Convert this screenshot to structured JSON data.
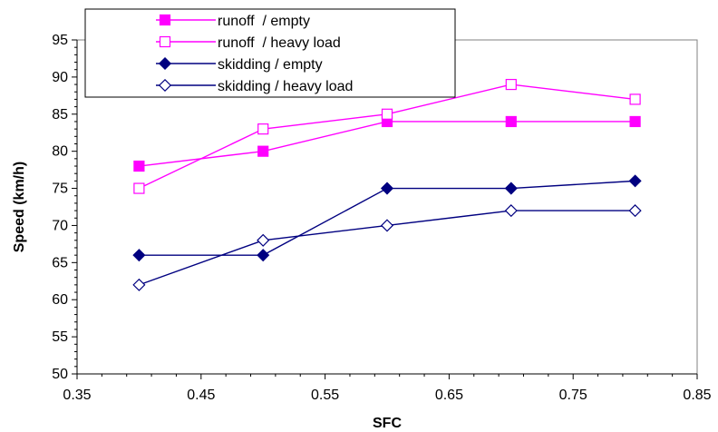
{
  "chart_data": {
    "type": "line",
    "title": "",
    "xlabel": "SFC",
    "ylabel": "Speed (km/h)",
    "xlim": [
      0.35,
      0.85
    ],
    "ylim": [
      50,
      95
    ],
    "x_ticks": [
      0.35,
      0.45,
      0.55,
      0.65,
      0.75,
      0.85
    ],
    "x_tick_labels": [
      "0.35",
      "0.45",
      "0.55",
      "0.65",
      "0.75",
      "0.85"
    ],
    "y_ticks": [
      50,
      55,
      60,
      65,
      70,
      75,
      80,
      85,
      90,
      95
    ],
    "y_tick_labels": [
      "50",
      "55",
      "60",
      "65",
      "70",
      "75",
      "80",
      "85",
      "90",
      "95"
    ],
    "grid": false,
    "legend_position": "top-left",
    "x": [
      0.4,
      0.5,
      0.6,
      0.7,
      0.8
    ],
    "series": [
      {
        "name": "runoff  / empty",
        "values": [
          78,
          80,
          84,
          84,
          84
        ],
        "color": "#ff00ff",
        "marker": "square-filled"
      },
      {
        "name": "runoff  / heavy load",
        "values": [
          75,
          83,
          85,
          89,
          87
        ],
        "color": "#ff00ff",
        "marker": "square-open"
      },
      {
        "name": "skidding / empty",
        "values": [
          66,
          66,
          75,
          75,
          76
        ],
        "color": "#000080",
        "marker": "diamond-filled"
      },
      {
        "name": "skidding / heavy load",
        "values": [
          62,
          68,
          70,
          72,
          72
        ],
        "color": "#000080",
        "marker": "diamond-open"
      }
    ]
  }
}
